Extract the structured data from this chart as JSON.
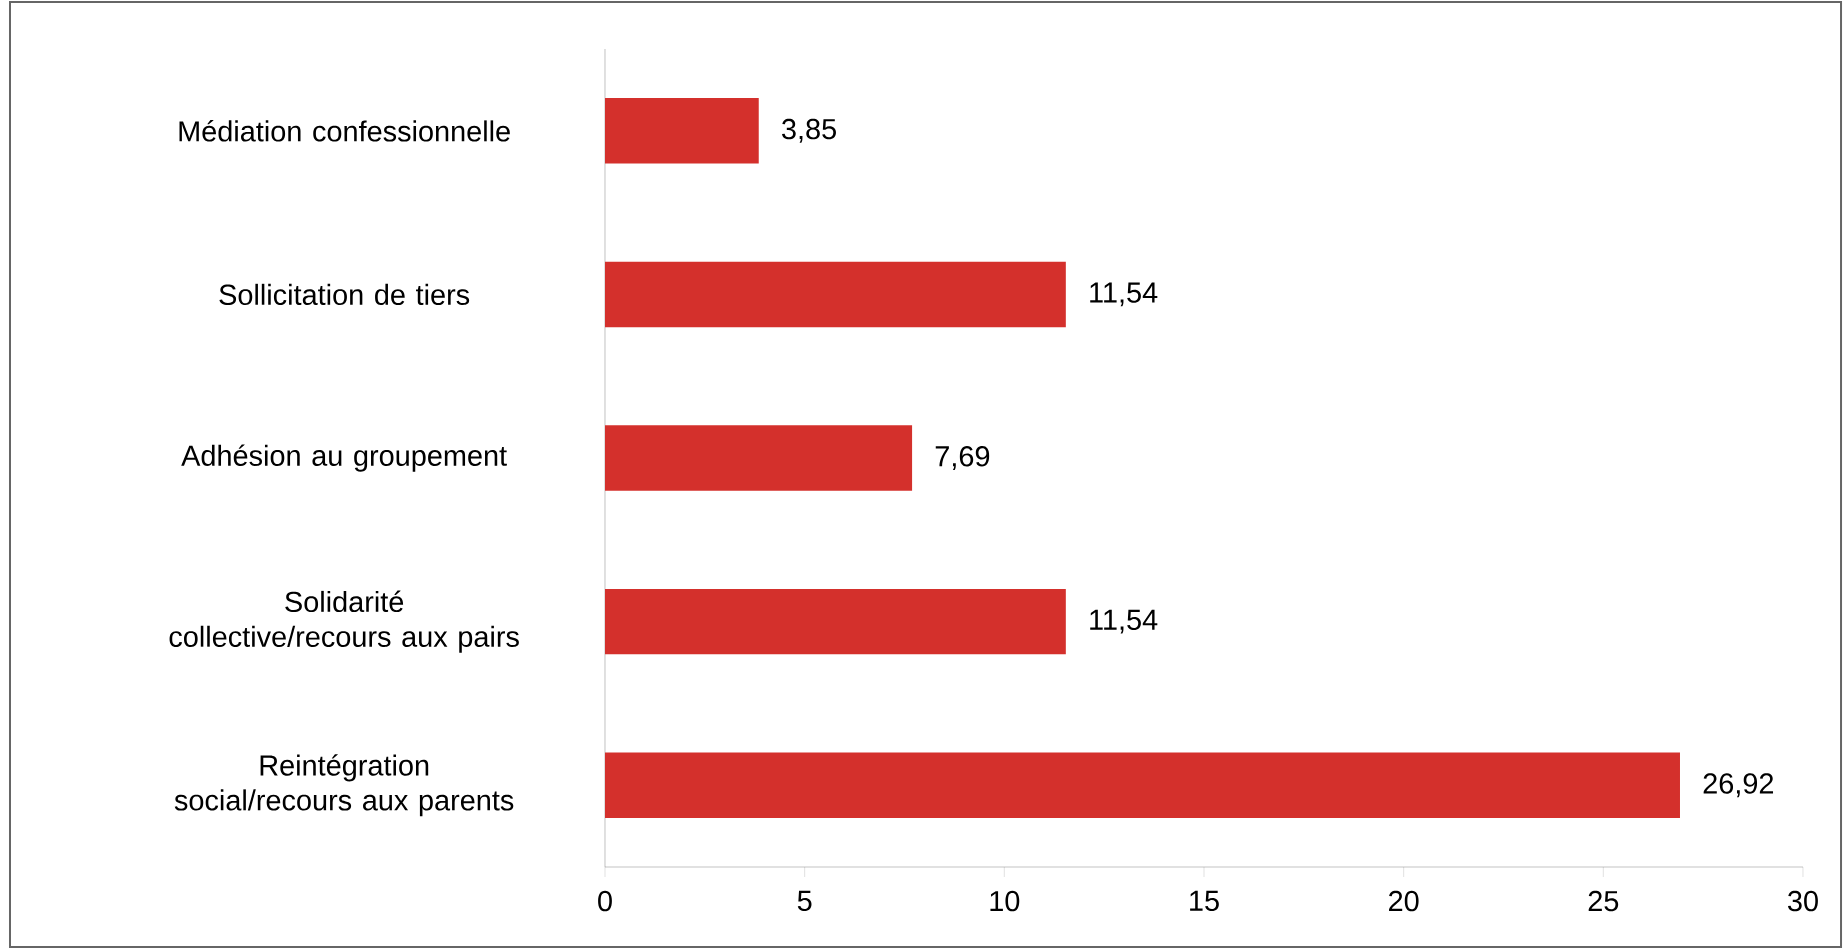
{
  "chart_data": {
    "type": "bar",
    "orientation": "horizontal",
    "categories": [
      "Médiation confessionnelle",
      "Sollicitation de tiers",
      "Adhésion au groupement",
      "Solidarité collective/recours aux pairs",
      "Reintégration social/recours aux parents"
    ],
    "values": [
      3.85,
      11.54,
      7.69,
      11.54,
      26.92
    ],
    "value_labels": [
      "3,85",
      "11,54",
      "7,69",
      "11,54",
      "26,92"
    ],
    "color": "#d4302c",
    "xlim": [
      0,
      30
    ],
    "xticks": [
      0,
      5,
      10,
      15,
      20,
      25,
      30
    ]
  }
}
